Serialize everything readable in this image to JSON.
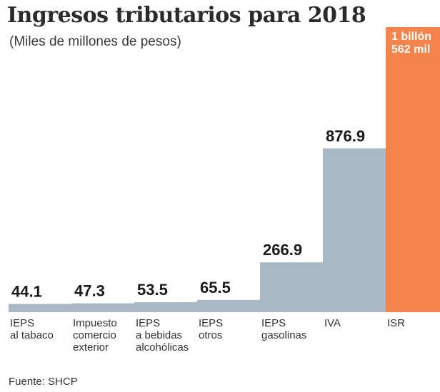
{
  "colors": {
    "bar": "#a9b8c4",
    "highlight": "#f4834c"
  },
  "chart_data": {
    "type": "bar",
    "title": "Ingresos tributarios para 2018",
    "subtitle": "(Miles de millones de pesos)",
    "categories": [
      [
        "IEPS",
        "al tabaco"
      ],
      [
        "Impuesto",
        "comercio",
        "exterior"
      ],
      [
        "IEPS",
        "a bebidas",
        "alcohólicas"
      ],
      [
        "IEPS",
        "otros"
      ],
      [
        "IEPS",
        "gasolinas"
      ],
      [
        "IVA"
      ],
      [
        "ISR"
      ]
    ],
    "values": [
      44.1,
      47.3,
      53.5,
      65.5,
      266.9,
      876.9,
      1562
    ],
    "value_labels": [
      [
        "44.1"
      ],
      [
        "47.3"
      ],
      [
        "53.5"
      ],
      [
        "65.5"
      ],
      [
        "266.9"
      ],
      [
        "876.9"
      ],
      [
        "1 billón",
        "562 mil"
      ]
    ],
    "highlight_index": 6,
    "xlabel": "",
    "ylabel": "",
    "grid": false
  },
  "source": "Fuente: SHCP"
}
